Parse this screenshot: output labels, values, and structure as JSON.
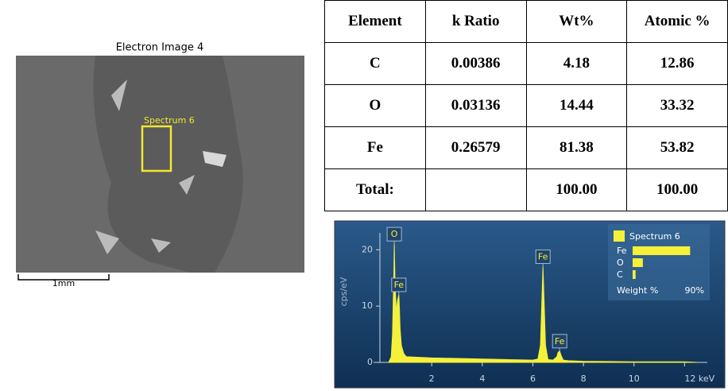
{
  "electron_image": {
    "title": "Electron Image 4",
    "region_label": "Spectrum 6",
    "scale_label": "1mm"
  },
  "table": {
    "header": [
      "Element",
      "k Ratio",
      "Wt%",
      "Atomic %"
    ],
    "rows": [
      [
        "C",
        "0.00386",
        "4.18",
        "12.86"
      ],
      [
        "O",
        "0.03136",
        "14.44",
        "33.32"
      ],
      [
        "Fe",
        "0.26579",
        "81.38",
        "53.82"
      ],
      [
        "Total:",
        "",
        "100.00",
        "100.00"
      ]
    ]
  },
  "chart_data": {
    "type": "area",
    "y_label": "cps/eV",
    "color": "#f5f03a",
    "x": [
      0.3,
      0.4,
      0.45,
      0.5,
      0.52,
      0.55,
      0.6,
      0.65,
      0.7,
      0.72,
      0.75,
      0.8,
      0.9,
      1.0,
      1.5,
      2,
      3,
      4,
      5,
      6,
      6.2,
      6.3,
      6.35,
      6.4,
      6.45,
      6.5,
      6.6,
      6.8,
      6.95,
      7.0,
      7.06,
      7.12,
      7.2,
      7.4,
      8,
      10,
      12,
      12.5
    ],
    "values": [
      0,
      1,
      5,
      15,
      21,
      14,
      9,
      11,
      12,
      10,
      6,
      3,
      1.5,
      1,
      0.9,
      0.8,
      0.7,
      0.6,
      0.5,
      0.4,
      0.6,
      3,
      10,
      17,
      10,
      3,
      0.5,
      0.4,
      1,
      1.8,
      2,
      1.2,
      0.4,
      0.3,
      0.2,
      0.1,
      0.1,
      0
    ],
    "xlim": [
      -0.3,
      12.9
    ],
    "ylim": [
      0,
      23
    ],
    "xticks": [
      2,
      4,
      6,
      8,
      10,
      {
        "value": 12,
        "label": "12 keV"
      }
    ],
    "yticks": [
      0,
      10,
      20
    ],
    "peaks": [
      {
        "label": "O",
        "x": 0.52,
        "y": 21
      },
      {
        "label": "Fe",
        "x": 0.7,
        "y": 12
      },
      {
        "label": "Fe",
        "x": 6.4,
        "y": 17
      },
      {
        "label": "Fe",
        "x": 7.06,
        "y": 2
      }
    ],
    "legend": {
      "name": "Spectrum 6",
      "categories": [
        "Fe",
        "O",
        "C"
      ],
      "values": [
        81.38,
        14.44,
        4.18
      ],
      "axis_label": "Weight %",
      "xlim": [
        0,
        90
      ],
      "xticks": [
        {
          "value": 90,
          "label": "90%"
        }
      ]
    }
  }
}
